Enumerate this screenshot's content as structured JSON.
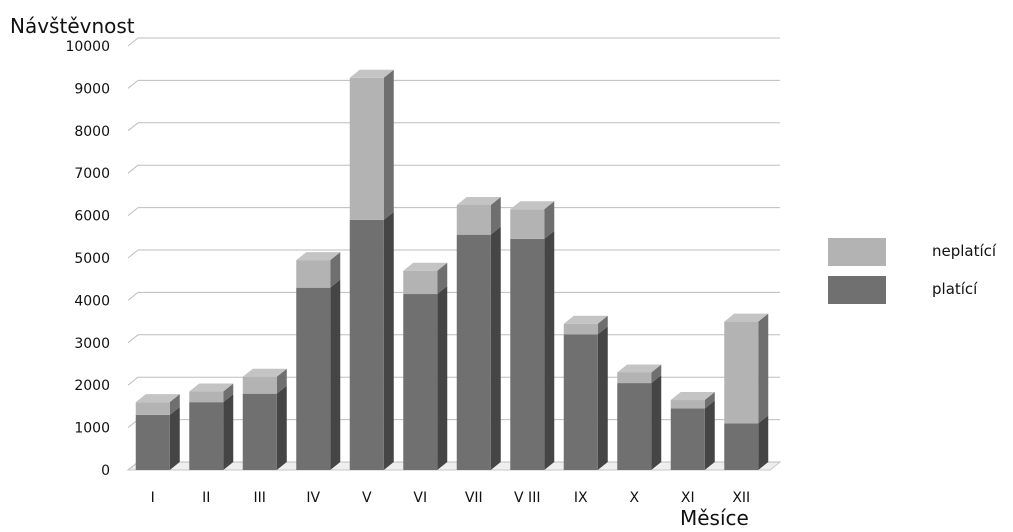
{
  "chart_data": {
    "type": "bar",
    "stacked": true,
    "three_d": true,
    "ylabel": "Návštěvnost",
    "xlabel": "Měsíce",
    "ylim": [
      0,
      10000
    ],
    "yticks": [
      0,
      1000,
      2000,
      3000,
      4000,
      5000,
      6000,
      7000,
      8000,
      9000,
      10000
    ],
    "grid": true,
    "legend_position": "right",
    "categories": [
      "I",
      "II",
      "III",
      "IV",
      "V",
      "VI",
      "VII",
      "V III",
      "IX",
      "X",
      "XI",
      "XII"
    ],
    "series": [
      {
        "name": "platící",
        "color": "#707070",
        "values": [
          1300,
          1600,
          1800,
          4300,
          5900,
          4150,
          5550,
          5450,
          3200,
          2050,
          1450,
          1100
        ]
      },
      {
        "name": "neplatící",
        "color": "#b3b3b3",
        "values": [
          300,
          250,
          400,
          650,
          3350,
          550,
          700,
          700,
          250,
          250,
          200,
          2400
        ]
      }
    ]
  }
}
